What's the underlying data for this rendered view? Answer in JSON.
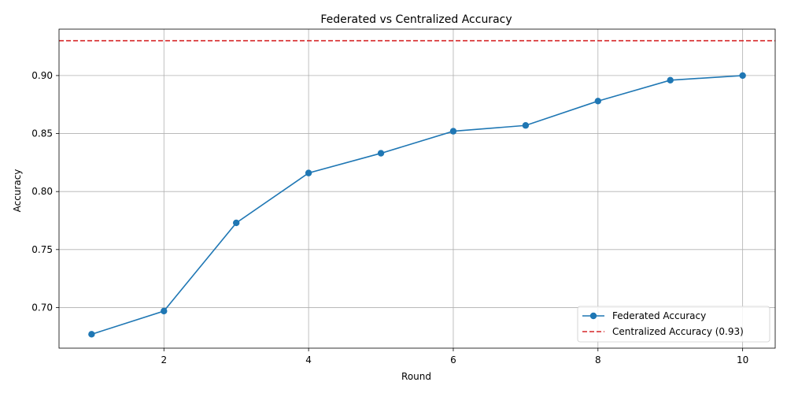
{
  "chart_data": {
    "type": "line",
    "title": "Federated vs Centralized Accuracy",
    "xlabel": "Round",
    "ylabel": "Accuracy",
    "xlim": [
      0.55,
      10.45
    ],
    "ylim": [
      0.665,
      0.94
    ],
    "x_ticks": [
      2,
      4,
      6,
      8,
      10
    ],
    "x_tick_labels": [
      "2",
      "4",
      "6",
      "8",
      "10"
    ],
    "y_ticks": [
      0.7,
      0.75,
      0.8,
      0.85,
      0.9
    ],
    "y_tick_labels": [
      "0.70",
      "0.75",
      "0.80",
      "0.85",
      "0.90"
    ],
    "grid": true,
    "legend_position": "lower-right",
    "series": [
      {
        "name": "Federated Accuracy",
        "style": "line-with-circle-markers",
        "color": "#1f77b4",
        "x": [
          1,
          2,
          3,
          4,
          5,
          6,
          7,
          8,
          9,
          10
        ],
        "y": [
          0.677,
          0.697,
          0.773,
          0.816,
          0.833,
          0.852,
          0.857,
          0.878,
          0.896,
          0.9
        ]
      },
      {
        "name": "Centralized Accuracy (0.93)",
        "style": "dashed-horizontal",
        "color": "#d62728",
        "value": 0.93
      }
    ]
  }
}
